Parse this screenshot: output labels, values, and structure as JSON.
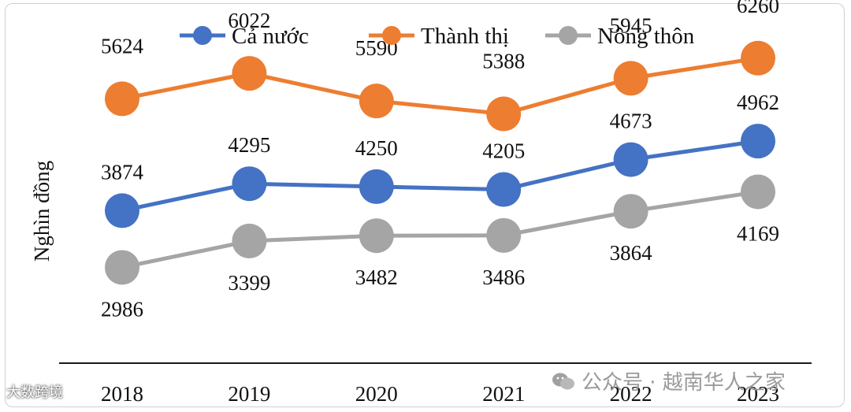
{
  "chart_data": {
    "type": "line",
    "title": "",
    "xlabel": "",
    "ylabel": "Nghìn đồng",
    "categories": [
      "2018",
      "2019",
      "2020",
      "2021",
      "2022",
      "2023"
    ],
    "ylim": [
      1500,
      6800
    ],
    "grid": false,
    "legend_position": "top",
    "series": [
      {
        "name": "Cả nước",
        "color": "#4472C4",
        "values": [
          3874,
          4295,
          4250,
          4205,
          4673,
          4962
        ]
      },
      {
        "name": "Thành thị",
        "color": "#ED7D31",
        "values": [
          5624,
          6022,
          5590,
          5388,
          5945,
          6260
        ]
      },
      {
        "name": "Nông thôn",
        "color": "#A5A5A5",
        "values": [
          2986,
          3399,
          3482,
          3486,
          3864,
          4169
        ]
      }
    ]
  },
  "watermarks": {
    "left": "大数跨境",
    "right": "公众号 · 越南华人之家"
  }
}
